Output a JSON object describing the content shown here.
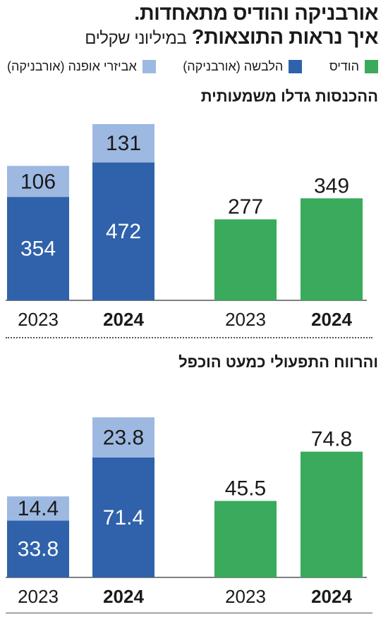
{
  "header": {
    "title_line1": "אורבניקה והודיס מתאחדות.",
    "title_line2": "איך נראות התוצאות?",
    "unit_note": "במיליוני שקלים"
  },
  "legend": [
    {
      "label": "הודיס",
      "color": "#3aaa5c",
      "icon": "square-swatch"
    },
    {
      "label": "הלבשה (אורבניקה)",
      "color": "#2f62aa",
      "icon": "square-swatch"
    },
    {
      "label": "אביזרי אופנה (אורבניקה)",
      "color": "#9db9e2",
      "icon": "square-swatch"
    }
  ],
  "colors": {
    "hodis": "#3aaa5c",
    "clothing": "#2f62aa",
    "accessories": "#9db9e2",
    "label_dark": "#1a1a1a",
    "label_light": "#ffffff"
  },
  "chart_data": [
    {
      "type": "bar",
      "title": "ההכנסות גדלו משמעותית",
      "groups": [
        {
          "name": "",
          "stacked": true,
          "categories": [
            "2023",
            "2024"
          ],
          "series": [
            {
              "name": "הלבשה (אורבניקה)",
              "values": [
                354,
                472
              ]
            },
            {
              "name": "אביזרי אופנה (אורבניקה)",
              "values": [
                106,
                131
              ]
            }
          ]
        },
        {
          "name": "",
          "stacked": false,
          "categories": [
            "2023",
            "2024"
          ],
          "series": [
            {
              "name": "הודיס",
              "values": [
                277,
                349
              ]
            }
          ]
        }
      ],
      "ylim": [
        0,
        603
      ],
      "grid": false,
      "legend_position": "top"
    },
    {
      "type": "bar",
      "title": "והרווח התפעולי כמעט הוכפל",
      "groups": [
        {
          "name": "",
          "stacked": true,
          "categories": [
            "2023",
            "2024"
          ],
          "series": [
            {
              "name": "הלבשה (אורבניקה)",
              "values": [
                33.8,
                71.4
              ]
            },
            {
              "name": "אביזרי אופנה (אורבניקה)",
              "values": [
                14.4,
                23.8
              ]
            }
          ]
        },
        {
          "name": "",
          "stacked": false,
          "categories": [
            "2023",
            "2024"
          ],
          "series": [
            {
              "name": "הודיס",
              "values": [
                45.5,
                74.8
              ]
            }
          ]
        }
      ],
      "ylim": [
        0,
        95.2
      ],
      "grid": false,
      "legend_position": "top"
    }
  ]
}
